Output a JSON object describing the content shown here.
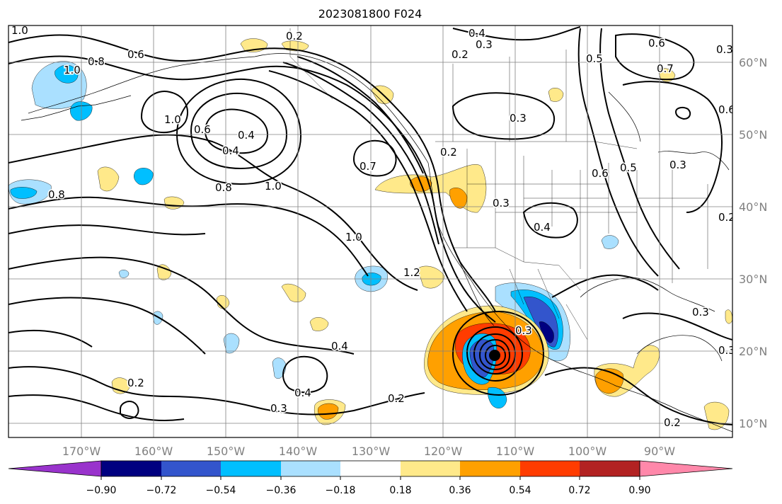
{
  "title": "2023081800 F024",
  "map": {
    "lat_labels": [
      "60°N",
      "50°N",
      "40°N",
      "30°N",
      "20°N",
      "10°N"
    ],
    "lon_labels": [
      "170°W",
      "160°W",
      "150°W",
      "140°W",
      "130°W",
      "120°W",
      "110°W",
      "100°W",
      "90°W"
    ],
    "contour_labels": [
      "1.0",
      "0.2",
      "0.4",
      "0.3",
      "0.2",
      "0.6",
      "0.3",
      "0.6",
      "0.5",
      "0.7",
      "1.0",
      "0.6",
      "0.8",
      "1.0",
      "0.6",
      "0.4",
      "0.4",
      "0.3",
      "0.2",
      "0.7",
      "0.8",
      "1.0",
      "0.8",
      "0.3",
      "0.4",
      "0.6",
      "0.5",
      "0.3",
      "0.2",
      "1.0",
      "1.2",
      "0.3",
      "0.4",
      "0.2",
      "0.3",
      "0.4",
      "0.3",
      "0.2",
      "0.2",
      "0.3"
    ]
  },
  "colorbar": {
    "tick_labels": [
      "−0.90",
      "−0.72",
      "−0.54",
      "−0.36",
      "−0.18",
      "0.18",
      "0.36",
      "0.54",
      "0.72",
      "0.90"
    ],
    "colors": [
      "#9933cc",
      "#000080",
      "#3355cc",
      "#00bfff",
      "#aae0ff",
      "#ffffff",
      "#ffe98a",
      "#ffa000",
      "#ff3c00",
      "#b22222",
      "#ff88aa"
    ]
  },
  "colors": {
    "light_blue": "#aae0ff",
    "cyan": "#00bfff",
    "royal_blue": "#3355cc",
    "navy": "#000080",
    "light_yellow": "#ffe98a",
    "orange": "#ffa000",
    "red_orange": "#ff3c00"
  }
}
